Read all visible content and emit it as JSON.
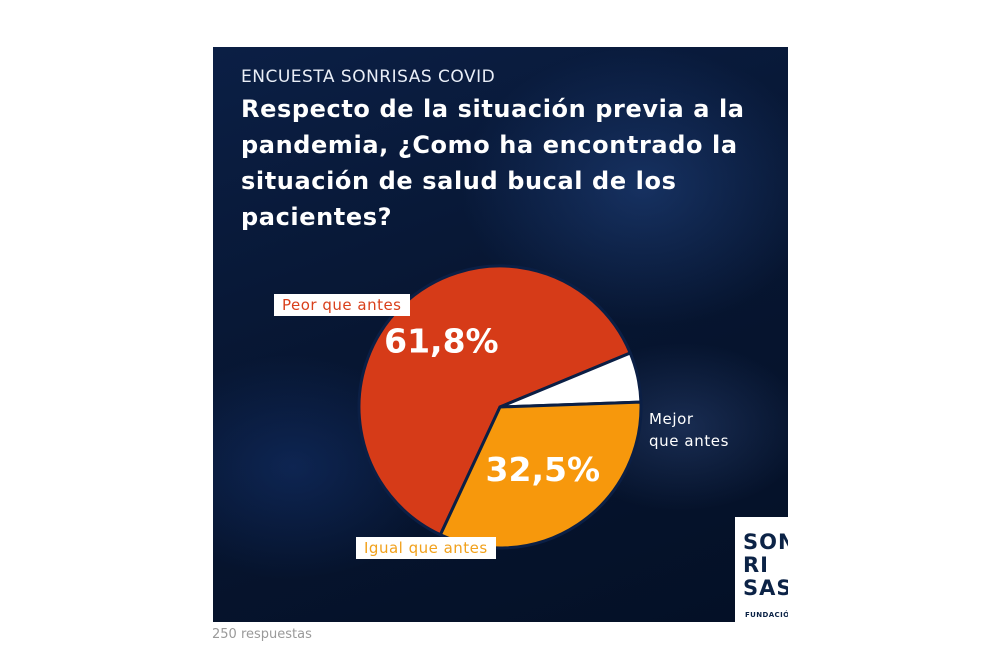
{
  "header": {
    "kicker": "ENCUESTA SONRISAS COVID",
    "question": "Respecto de la situación previa a la pandemia, ¿Como ha encontrado la situación de salud bucal de los pacientes?"
  },
  "chart_data": {
    "type": "pie",
    "slices": [
      {
        "label": "Peor que antes",
        "value": 61.8,
        "display": "61,8%",
        "color": "#d63b18"
      },
      {
        "label": "Mejor que antes",
        "value": 5.7,
        "display": "5.7%",
        "color": "#ffffff"
      },
      {
        "label": "Igual que antes",
        "value": 32.5,
        "display": "32,5%",
        "color": "#f7980c"
      }
    ]
  },
  "labels": {
    "peor": "Peor que antes",
    "igual": "Igual que antes",
    "mejor_line1": "Mejor",
    "mejor_line2": "que antes"
  },
  "logo": {
    "line1": "SON",
    "line2": "RI",
    "line3": "SAS",
    "sub": "FUNDACIÓN"
  },
  "footnote": "250 respuestas"
}
